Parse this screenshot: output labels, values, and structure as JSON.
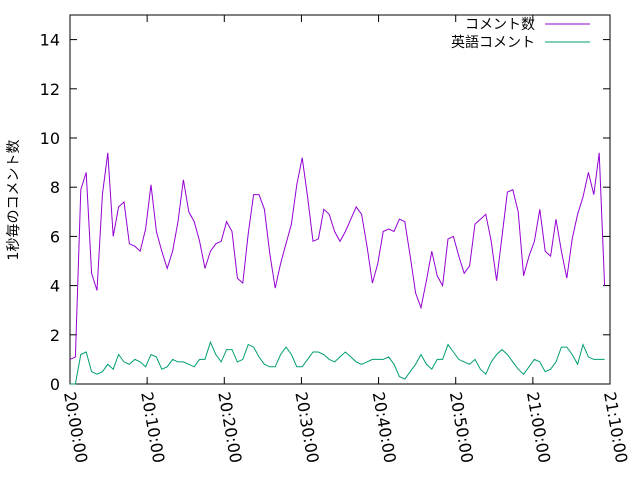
{
  "chart_data": {
    "type": "line",
    "title": "",
    "xlabel": "",
    "ylabel": "1秒毎のコメント数",
    "x_ticks": [
      "20:00:00",
      "20:10:00",
      "20:20:00",
      "20:30:00",
      "20:40:00",
      "20:50:00",
      "21:00:00",
      "21:10:00"
    ],
    "x_range_minutes": [
      0,
      70
    ],
    "ylim": [
      0,
      15
    ],
    "y_ticks": [
      0,
      2,
      4,
      6,
      8,
      10,
      12,
      14
    ],
    "grid": false,
    "legend_position": "top-right",
    "x_minutes": [
      0,
      0.7,
      1.4,
      2.1,
      2.8,
      3.5,
      4.2,
      4.9,
      5.6,
      6.3,
      7,
      7.7,
      8.4,
      9.1,
      9.8,
      10.5,
      11.2,
      11.9,
      12.6,
      13.3,
      14,
      14.7,
      15.4,
      16.1,
      16.8,
      17.5,
      18.2,
      18.9,
      19.6,
      20.3,
      21,
      21.7,
      22.4,
      23.1,
      23.8,
      24.5,
      25.2,
      25.9,
      26.6,
      27.3,
      28,
      28.7,
      29.4,
      30.1,
      30.8,
      31.5,
      32.2,
      32.9,
      33.6,
      34.3,
      35,
      35.7,
      36.4,
      37.1,
      37.8,
      38.5,
      39.2,
      39.9,
      40.6,
      41.3,
      42,
      42.7,
      43.4,
      44.1,
      44.8,
      45.5,
      46.2,
      46.9,
      47.6,
      48.3,
      49,
      49.7,
      50.4,
      51.1,
      51.8,
      52.5,
      53.2,
      53.9,
      54.6,
      55.3,
      56,
      56.7,
      57.4,
      58.1,
      58.8,
      59.5,
      60.2,
      60.9,
      61.6,
      62.3,
      63,
      63.7,
      64.4
    ],
    "series": [
      {
        "name": "コメント数",
        "color": "#9400d3",
        "values": [
          1.0,
          1.1,
          7.9,
          8.6,
          4.5,
          3.8,
          7.7,
          9.4,
          6.0,
          7.2,
          7.4,
          5.7,
          5.6,
          5.4,
          6.3,
          8.1,
          6.2,
          5.4,
          4.7,
          5.4,
          6.6,
          8.3,
          7.0,
          6.6,
          5.8,
          4.7,
          5.4,
          5.7,
          5.8,
          6.6,
          6.2,
          4.3,
          4.1,
          6.1,
          7.7,
          7.7,
          7.1,
          5.3,
          3.9,
          4.9,
          5.7,
          6.5,
          8.1,
          9.2,
          7.6,
          5.8,
          5.9,
          7.1,
          6.9,
          6.2,
          5.8,
          6.2,
          6.7,
          7.2,
          6.9,
          5.6,
          4.1,
          4.9,
          6.2,
          6.3,
          6.2,
          6.7,
          6.6,
          5.2,
          3.7,
          3.1,
          4.2,
          5.4,
          4.4,
          4.0,
          5.9,
          6.0,
          5.2,
          4.5,
          4.8,
          6.5,
          6.7,
          6.9,
          5.8,
          4.2,
          6.0,
          7.8,
          7.9,
          7.0,
          4.4,
          5.2,
          5.8,
          7.1,
          5.4,
          5.2,
          6.7,
          5.4,
          4.3
        ],
        "values_tail_x": [
          64.4,
          65.1,
          65.8,
          66.5,
          67.2,
          67.9,
          68.6,
          69.3
        ],
        "values_tail": [
          4.3,
          5.9,
          6.9,
          7.6,
          8.6,
          7.7,
          9.4,
          4.0
        ]
      },
      {
        "name": "英語コメント",
        "color": "#009e73",
        "values": [
          0.0,
          0.0,
          1.2,
          1.3,
          0.5,
          0.4,
          0.5,
          0.8,
          0.6,
          1.2,
          0.9,
          0.8,
          1.0,
          0.9,
          0.7,
          1.2,
          1.1,
          0.6,
          0.7,
          1.0,
          0.9,
          0.9,
          0.8,
          0.7,
          1.0,
          1.0,
          1.7,
          1.2,
          0.9,
          1.4,
          1.4,
          0.9,
          1.0,
          1.6,
          1.5,
          1.1,
          0.8,
          0.7,
          0.7,
          1.2,
          1.5,
          1.2,
          0.7,
          0.7,
          1.0,
          1.3,
          1.3,
          1.2,
          1.0,
          0.9,
          1.1,
          1.3,
          1.1,
          0.9,
          0.8,
          0.9,
          1.0,
          1.0,
          1.0,
          1.1,
          0.8,
          0.3,
          0.2,
          0.5,
          0.8,
          1.2,
          0.8,
          0.6,
          1.0,
          1.0,
          1.6,
          1.3,
          1.0,
          0.9,
          0.8,
          1.0,
          0.6,
          0.4,
          0.9,
          1.2,
          1.4,
          1.2,
          0.9,
          0.6,
          0.4,
          0.7,
          1.0,
          0.9,
          0.5,
          0.6,
          0.9,
          1.5,
          1.5
        ],
        "values_tail_x": [
          64.4,
          65.1,
          65.8,
          66.5,
          67.2,
          67.9,
          68.6,
          69.3
        ],
        "values_tail": [
          1.5,
          1.2,
          0.8,
          1.6,
          1.1,
          1.0,
          1.0,
          1.0
        ]
      }
    ]
  }
}
